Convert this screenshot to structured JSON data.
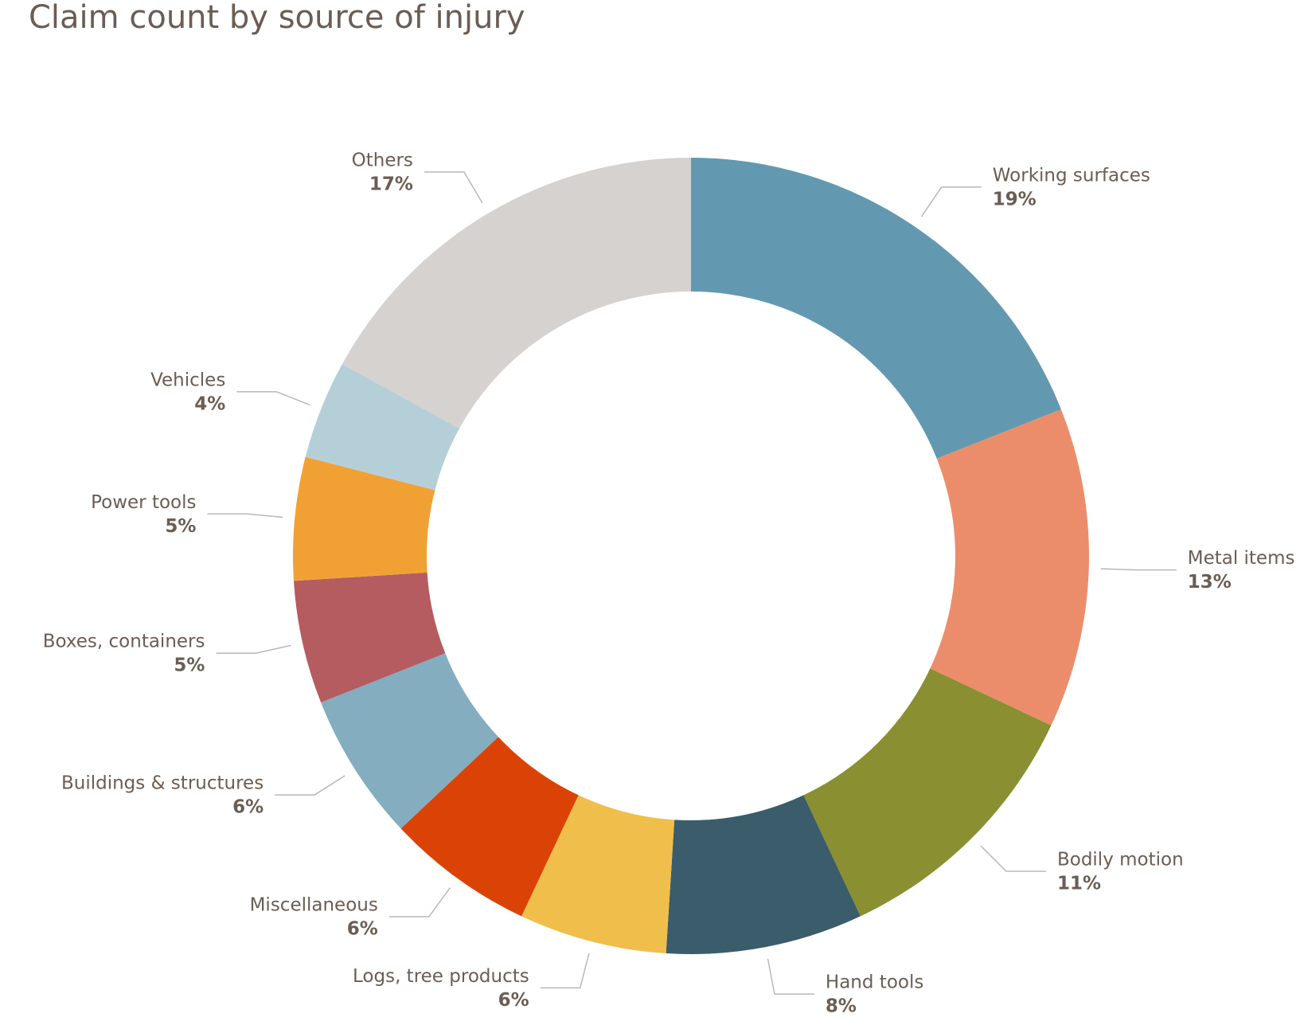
{
  "chart_data": {
    "type": "donut",
    "title": "Claim count by source of injury",
    "categories": [
      "Working surfaces",
      "Metal items",
      "Bodily motion",
      "Hand tools",
      "Logs, tree products",
      "Miscellaneous",
      "Buildings & structures",
      "Boxes, containers",
      "Power tools",
      "Vehicles",
      "Others"
    ],
    "values": [
      19,
      13,
      11,
      8,
      6,
      6,
      6,
      5,
      5,
      4,
      17
    ],
    "value_labels": [
      "19%",
      "13%",
      "11%",
      "8%",
      "6%",
      "6%",
      "6%",
      "5%",
      "5%",
      "4%",
      "17%"
    ],
    "colors": [
      "#6399b0",
      "#eb8d6b",
      "#8a8f31",
      "#3b5c6b",
      "#f0be4a",
      "#db4306",
      "#84adbf",
      "#b55c60",
      "#f1a134",
      "#b5cfd9",
      "#d5d2cf"
    ]
  }
}
